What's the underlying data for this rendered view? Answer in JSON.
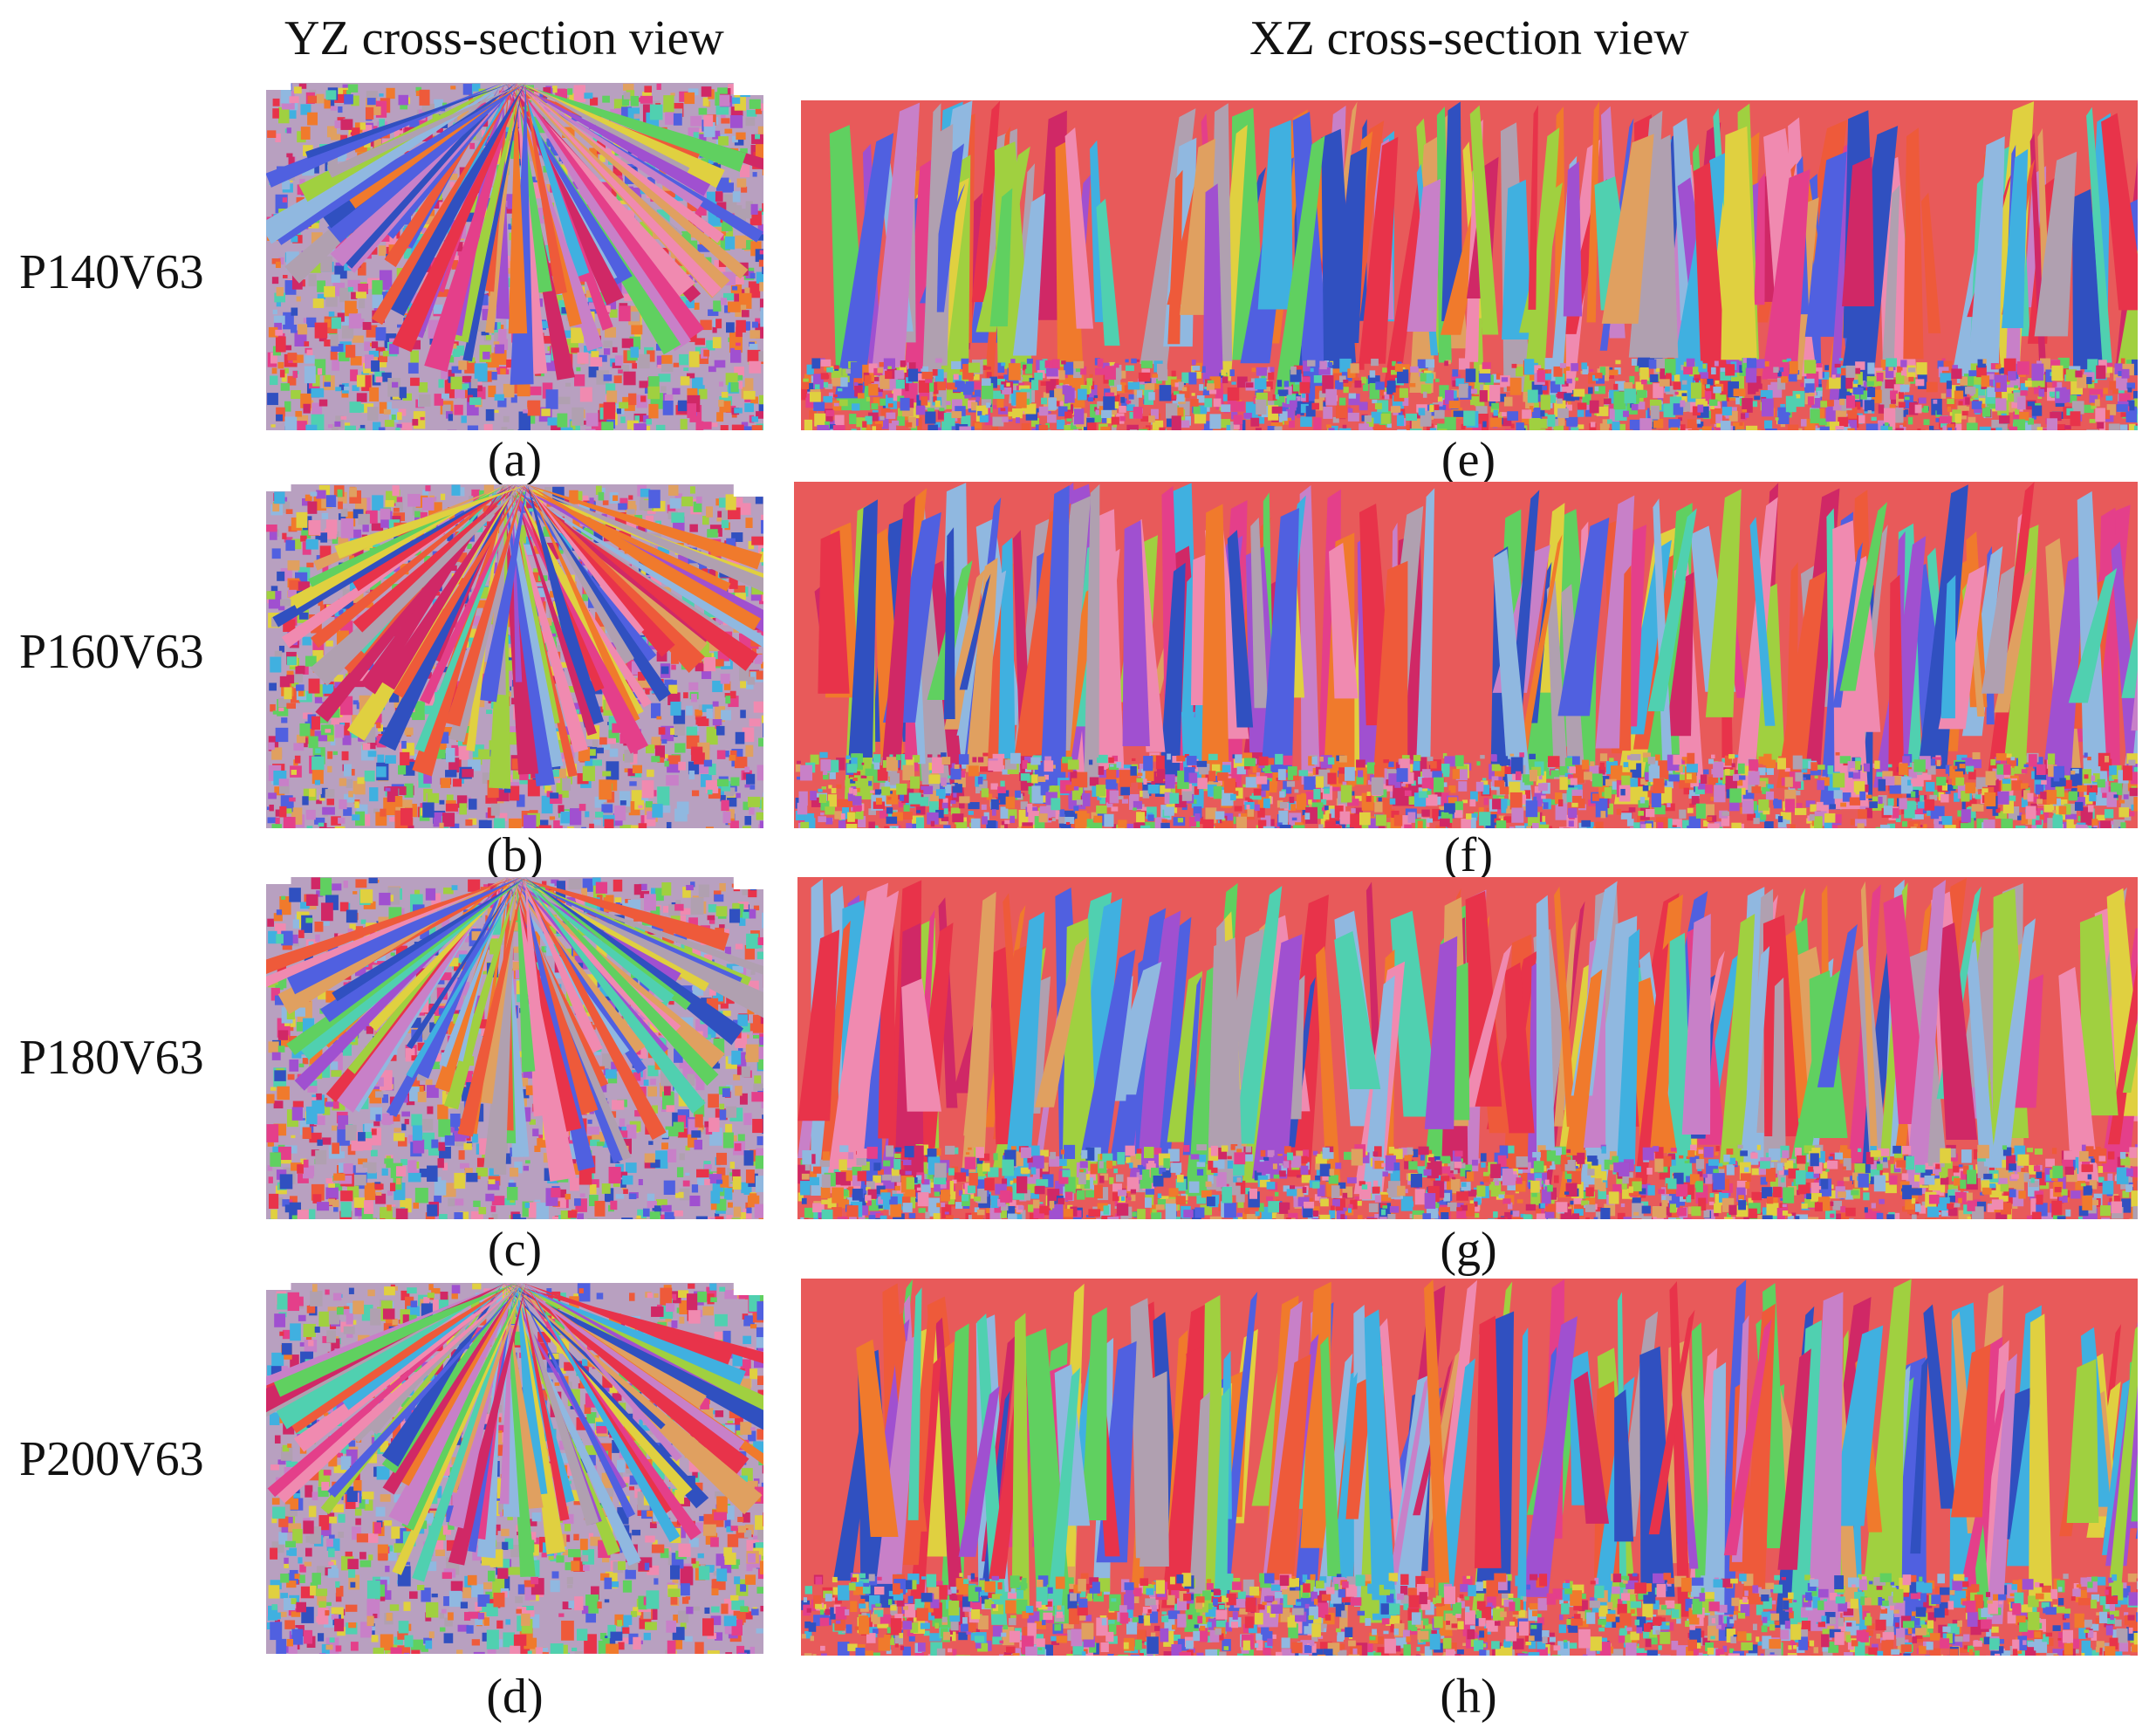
{
  "headers": {
    "yz": "YZ cross-section view",
    "xz": "XZ cross-section view"
  },
  "rows": [
    {
      "label": "P140V63",
      "yz_caption": "(a)",
      "xz_caption": "(e)"
    },
    {
      "label": "P160V63",
      "yz_caption": "(b)",
      "xz_caption": "(f)"
    },
    {
      "label": "P180V63",
      "yz_caption": "(c)",
      "xz_caption": "(g)"
    },
    {
      "label": "P200V63",
      "yz_caption": "(d)",
      "xz_caption": "(h)"
    }
  ],
  "palette": [
    "#e8334a",
    "#ee5a3a",
    "#f07a2c",
    "#e43f8a",
    "#d02866",
    "#f08ab0",
    "#c880c8",
    "#a050d0",
    "#5060e0",
    "#3050c0",
    "#40b0e0",
    "#50d0b0",
    "#60d060",
    "#a0d040",
    "#e0d040",
    "#e0a060",
    "#b0a0b0",
    "#90b8e0"
  ]
}
